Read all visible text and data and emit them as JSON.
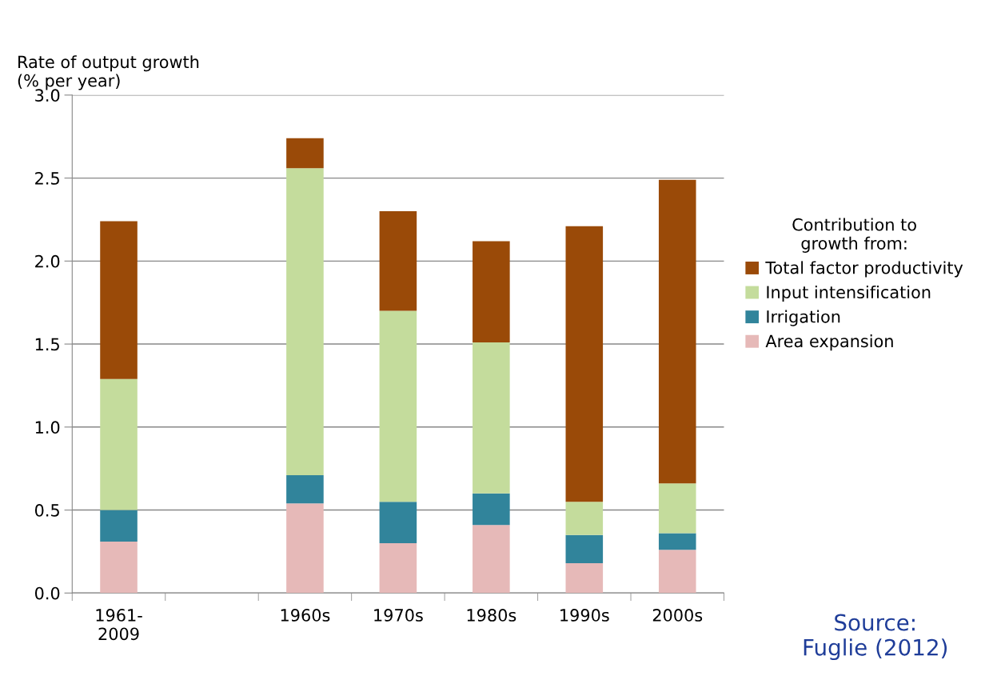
{
  "chart_data": {
    "type": "bar",
    "stacked": true,
    "ylabel": "Rate of output growth\n(% per year)",
    "categories": [
      "1961-\n2009",
      null,
      "1960s",
      "1970s",
      "1980s",
      "1990s",
      "2000s"
    ],
    "series": [
      {
        "name": "Area expansion",
        "color": "#e6b9b8",
        "values": [
          0.31,
          null,
          0.54,
          0.3,
          0.41,
          0.18,
          0.26
        ]
      },
      {
        "name": "Irrigation",
        "color": "#31849b",
        "values": [
          0.19,
          null,
          0.17,
          0.25,
          0.19,
          0.17,
          0.1
        ]
      },
      {
        "name": "Input intensification",
        "color": "#c4dc9c",
        "values": [
          0.79,
          null,
          1.85,
          1.15,
          0.91,
          0.2,
          0.3
        ]
      },
      {
        "name": "Total factor productivity",
        "color": "#9a4a08",
        "values": [
          0.95,
          null,
          0.18,
          0.6,
          0.61,
          1.66,
          1.83
        ]
      }
    ],
    "ylim": [
      0,
      3.0
    ],
    "yticks": [
      {
        "value": 0,
        "label": "0.0"
      },
      {
        "value": 0.5,
        "label": "0.5"
      },
      {
        "value": 1.0,
        "label": "1.0"
      },
      {
        "value": 1.5,
        "label": "1.5"
      },
      {
        "value": 2.0,
        "label": "2.0"
      },
      {
        "value": 2.5,
        "label": "2.5"
      },
      {
        "value": 3.0,
        "label": "3.0"
      }
    ],
    "grid": "y",
    "legend": "right",
    "legend_title": "Contribution to\ngrowth from:",
    "annotations": [
      "Source:\nFuglie (2012)"
    ]
  }
}
